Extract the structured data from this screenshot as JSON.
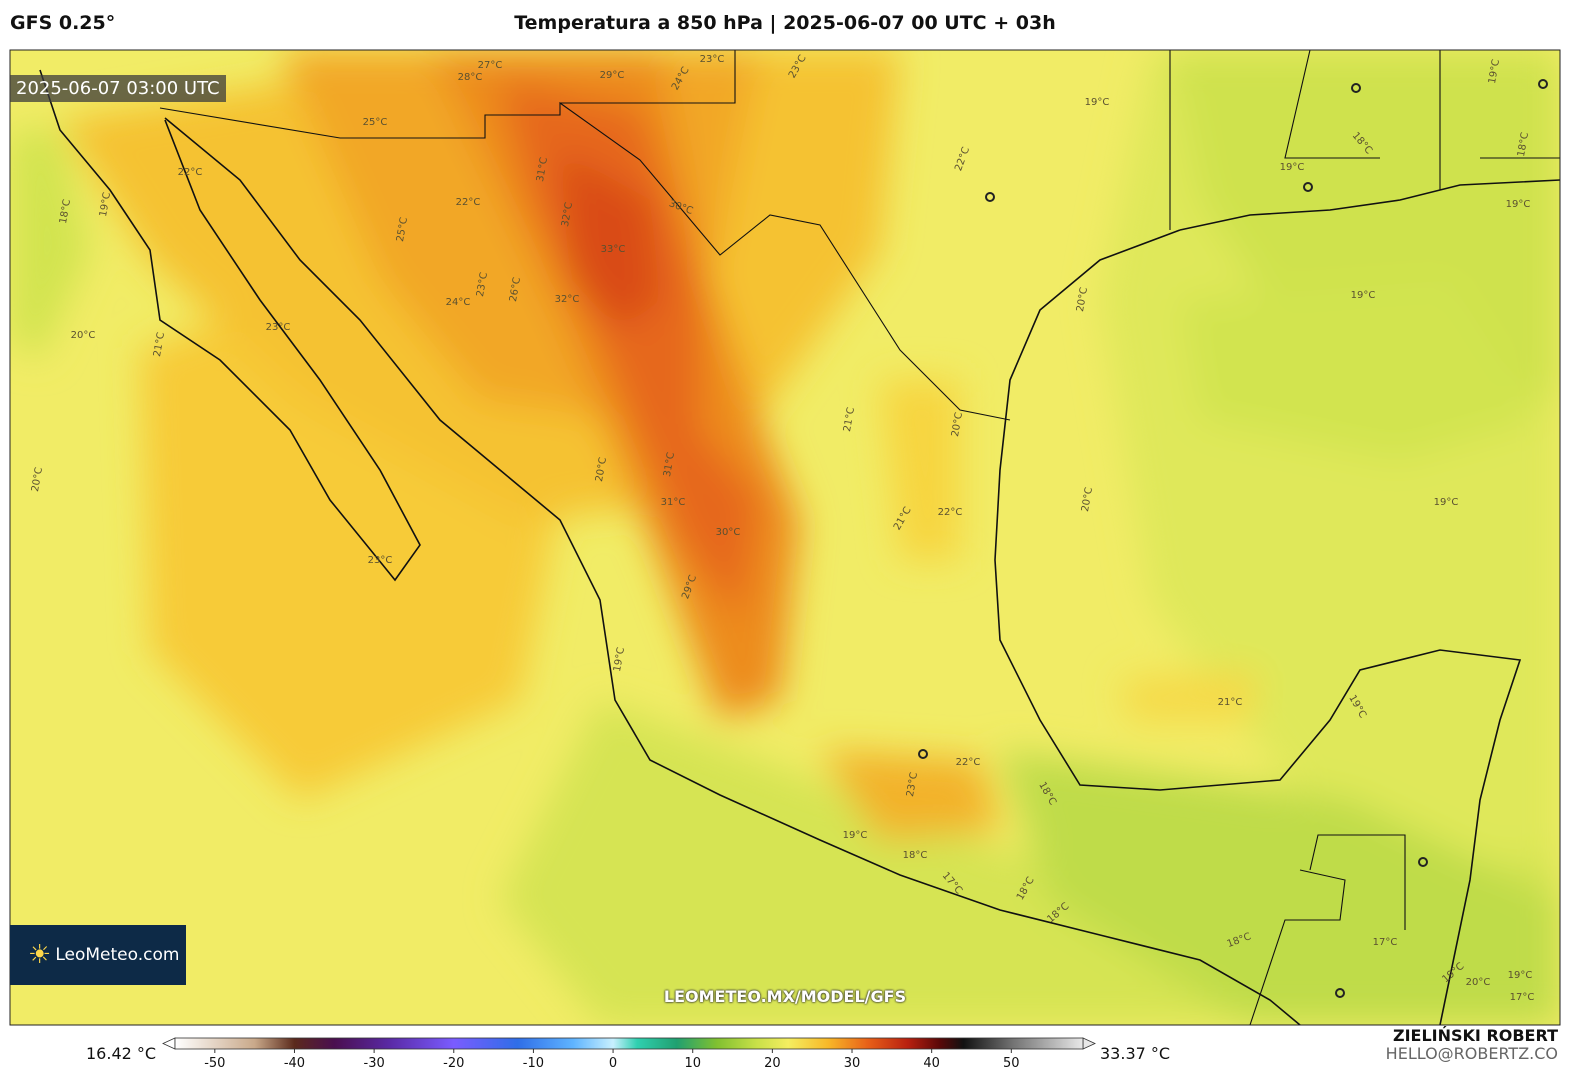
{
  "header": {
    "model": "GFS 0.25°",
    "title": "Temperatura a 850 hPa | 2025-06-07 00 UTC + 03h"
  },
  "map": {
    "valid_time": "2025-06-07 03:00 UTC",
    "logo": "LeoMeteo.com",
    "url": "LEOMETEO.MX/MODEL/GFS",
    "contour_labels": [
      "27°C",
      "28°C",
      "29°C",
      "24°C",
      "23°C",
      "23°C",
      "25°C",
      "31°C",
      "32°C",
      "30°C",
      "33°C",
      "32°C",
      "22°C",
      "18°C",
      "19°C",
      "20°C",
      "22°C",
      "25°C",
      "23°C",
      "26°C",
      "24°C",
      "23°C",
      "20°C",
      "21°C",
      "20°C",
      "22°C",
      "21°C",
      "31°C",
      "31°C",
      "30°C",
      "29°C",
      "20°C",
      "20°C",
      "22°C",
      "19°C",
      "19°C",
      "19°C",
      "20°C",
      "19°C",
      "19°C",
      "18°C",
      "18°C",
      "19°C",
      "21°C",
      "19°C",
      "21°C",
      "22°C",
      "23°C",
      "19°C",
      "18°C",
      "17°C",
      "18°C",
      "18°C",
      "17°C",
      "18°C",
      "19°C",
      "20°C",
      "17°C",
      "19°C",
      "23°C",
      "19°C",
      "18°C"
    ]
  },
  "colorbar": {
    "lim": [
      -55,
      59
    ],
    "ticks": [
      -50,
      -40,
      -30,
      -20,
      -10,
      0,
      10,
      20,
      30,
      40,
      50
    ],
    "stops": [
      [
        -55,
        "#ffffff"
      ],
      [
        -45,
        "#c9a98a"
      ],
      [
        -40,
        "#5b2a1c"
      ],
      [
        -35,
        "#4a0f4f"
      ],
      [
        -28,
        "#5a2aa6"
      ],
      [
        -20,
        "#7a5cff"
      ],
      [
        -12,
        "#2f6ee8"
      ],
      [
        -5,
        "#5fb4ff"
      ],
      [
        0,
        "#c8f0ff"
      ],
      [
        3,
        "#30d0b0"
      ],
      [
        8,
        "#20a070"
      ],
      [
        13,
        "#80c030"
      ],
      [
        18,
        "#c8e048"
      ],
      [
        22,
        "#f4ee60"
      ],
      [
        27,
        "#f8b828"
      ],
      [
        32,
        "#e86018"
      ],
      [
        37,
        "#b82010"
      ],
      [
        41,
        "#5a0808"
      ],
      [
        44,
        "#111111"
      ],
      [
        50,
        "#707070"
      ],
      [
        59,
        "#e8e8e8"
      ]
    ]
  },
  "footer": {
    "min_label": "16.42 °C",
    "max_label": "33.37 °C",
    "author": "ZIELIŃSKI ROBERT",
    "email": "HELLO@ROBERTZ.CO"
  }
}
